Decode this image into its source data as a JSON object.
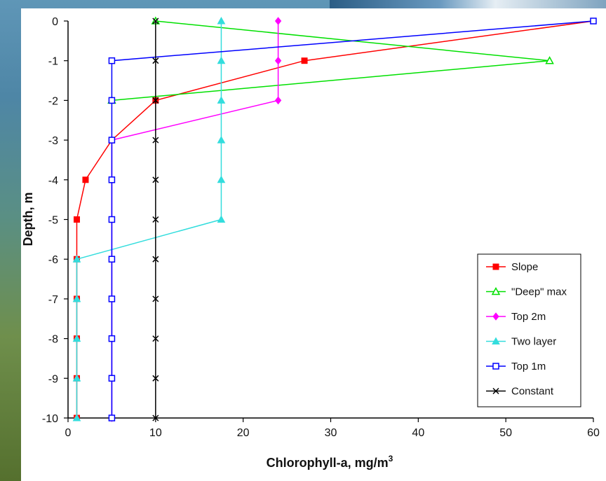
{
  "chart_data": {
    "type": "line",
    "title": "",
    "xlabel": "Chlorophyll-a, mg/m",
    "xlabel_superscript": "3",
    "ylabel": "Depth, m",
    "xlim": [
      0,
      60
    ],
    "ylim": [
      -10,
      0
    ],
    "x_ticks": [
      "0",
      "10",
      "20",
      "30",
      "40",
      "50",
      "60"
    ],
    "y_ticks": [
      "0",
      "-1",
      "-2",
      "-3",
      "-4",
      "-5",
      "-6",
      "-7",
      "-8",
      "-9",
      "-10"
    ],
    "grid": false,
    "legend_position": "bottom-right",
    "series": [
      {
        "name": "Slope",
        "color": "#ff0000",
        "marker": "square-filled",
        "points": [
          [
            60,
            0
          ],
          [
            27,
            -1
          ],
          [
            10,
            -2
          ],
          [
            5,
            -3
          ],
          [
            2,
            -4
          ],
          [
            1,
            -5
          ],
          [
            1,
            -6
          ],
          [
            1,
            -7
          ],
          [
            1,
            -8
          ],
          [
            1,
            -9
          ],
          [
            1,
            -10
          ]
        ]
      },
      {
        "name": "\"Deep\" max",
        "color": "#00e000",
        "marker": "triangle-open",
        "points": [
          [
            10,
            0
          ],
          [
            55,
            -1
          ],
          [
            5,
            -2
          ]
        ]
      },
      {
        "name": "Top 2m",
        "color": "#ff00ff",
        "marker": "diamond",
        "points": [
          [
            24,
            0
          ],
          [
            24,
            -1
          ],
          [
            24,
            -2
          ],
          [
            5,
            -3
          ],
          [
            5,
            -4
          ],
          [
            5,
            -5
          ],
          [
            5,
            -6
          ],
          [
            5,
            -7
          ],
          [
            5,
            -8
          ],
          [
            5,
            -9
          ],
          [
            5,
            -10
          ]
        ]
      },
      {
        "name": "Two layer",
        "color": "#33dddd",
        "marker": "triangle-filled",
        "points": [
          [
            17.5,
            0
          ],
          [
            17.5,
            -1
          ],
          [
            17.5,
            -2
          ],
          [
            17.5,
            -3
          ],
          [
            17.5,
            -4
          ],
          [
            17.5,
            -5
          ],
          [
            1,
            -6
          ],
          [
            1,
            -7
          ],
          [
            1,
            -8
          ],
          [
            1,
            -9
          ],
          [
            1,
            -10
          ]
        ]
      },
      {
        "name": "Top 1m",
        "color": "#0000ff",
        "marker": "square-open",
        "points": [
          [
            60,
            0
          ],
          [
            5,
            -1
          ],
          [
            5,
            -2
          ],
          [
            5,
            -3
          ],
          [
            5,
            -4
          ],
          [
            5,
            -5
          ],
          [
            5,
            -6
          ],
          [
            5,
            -7
          ],
          [
            5,
            -8
          ],
          [
            5,
            -9
          ],
          [
            5,
            -10
          ]
        ]
      },
      {
        "name": "Constant",
        "color": "#000000",
        "marker": "x",
        "points": [
          [
            10,
            0
          ],
          [
            10,
            -1
          ],
          [
            10,
            -2
          ],
          [
            10,
            -3
          ],
          [
            10,
            -4
          ],
          [
            10,
            -5
          ],
          [
            10,
            -6
          ],
          [
            10,
            -7
          ],
          [
            10,
            -8
          ],
          [
            10,
            -9
          ],
          [
            10,
            -10
          ]
        ]
      }
    ]
  }
}
